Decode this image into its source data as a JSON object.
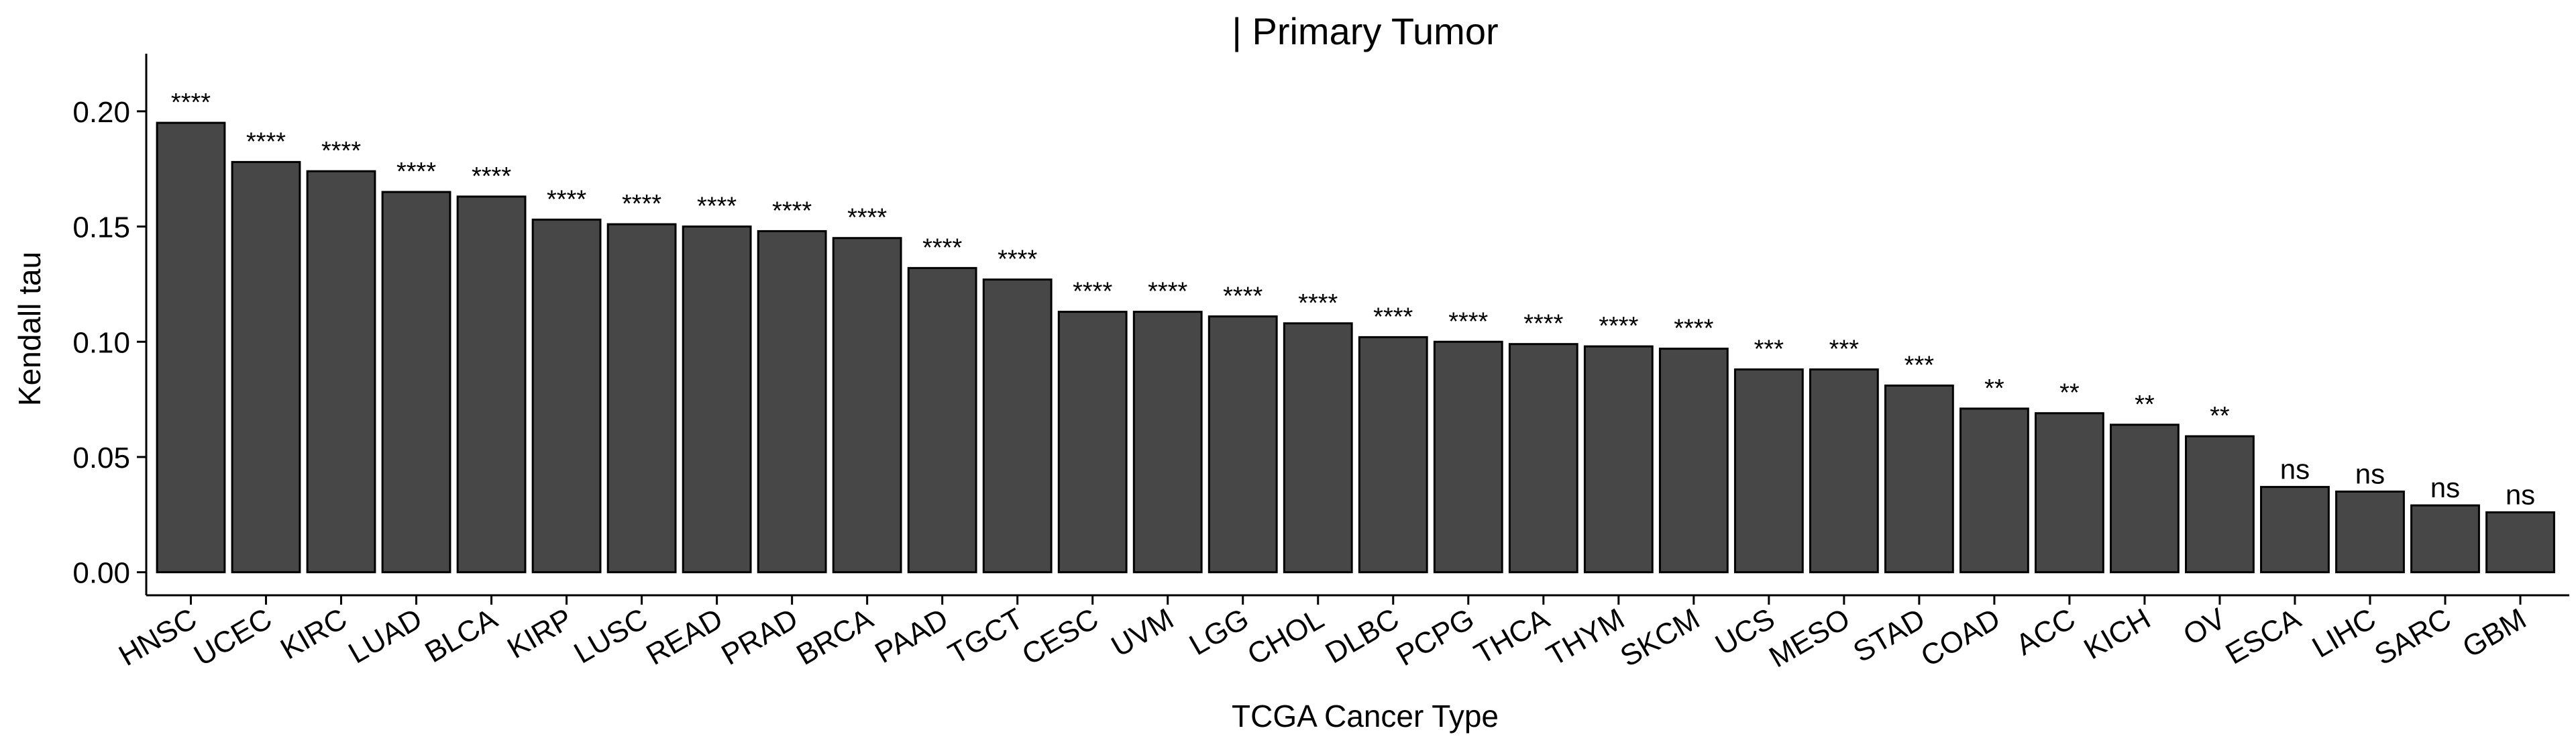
{
  "chart_data": {
    "type": "bar",
    "title": "| Primary Tumor",
    "xlabel": "TCGA Cancer Type",
    "ylabel": "Kendall tau",
    "ylim": [
      -0.01,
      0.225
    ],
    "yticks": [
      0.0,
      0.05,
      0.1,
      0.15,
      0.2
    ],
    "ytick_labels": [
      "0.00",
      "0.05",
      "0.10",
      "0.15",
      "0.20"
    ],
    "grid": false,
    "legend": "none",
    "bar_color": "#474747",
    "bar_edge_color": "#000000",
    "categories": [
      "HNSC",
      "UCEC",
      "KIRC",
      "LUAD",
      "BLCA",
      "KIRP",
      "LUSC",
      "READ",
      "PRAD",
      "BRCA",
      "PAAD",
      "TGCT",
      "CESC",
      "UVM",
      "LGG",
      "CHOL",
      "DLBC",
      "PCPG",
      "THCA",
      "THYM",
      "SKCM",
      "UCS",
      "MESO",
      "STAD",
      "COAD",
      "ACC",
      "KICH",
      "OV",
      "ESCA",
      "LIHC",
      "SARC",
      "GBM"
    ],
    "values": [
      0.195,
      0.178,
      0.174,
      0.165,
      0.163,
      0.153,
      0.151,
      0.15,
      0.148,
      0.145,
      0.132,
      0.127,
      0.113,
      0.113,
      0.111,
      0.108,
      0.102,
      0.1,
      0.099,
      0.098,
      0.097,
      0.088,
      0.088,
      0.081,
      0.071,
      0.069,
      0.064,
      0.059,
      0.037,
      0.035,
      0.029,
      0.026
    ],
    "significance": [
      "****",
      "****",
      "****",
      "****",
      "****",
      "****",
      "****",
      "****",
      "****",
      "****",
      "****",
      "****",
      "****",
      "****",
      "****",
      "****",
      "****",
      "****",
      "****",
      "****",
      "****",
      "***",
      "***",
      "***",
      "**",
      "**",
      "**",
      "**",
      "ns",
      "ns",
      "ns",
      "ns"
    ]
  }
}
